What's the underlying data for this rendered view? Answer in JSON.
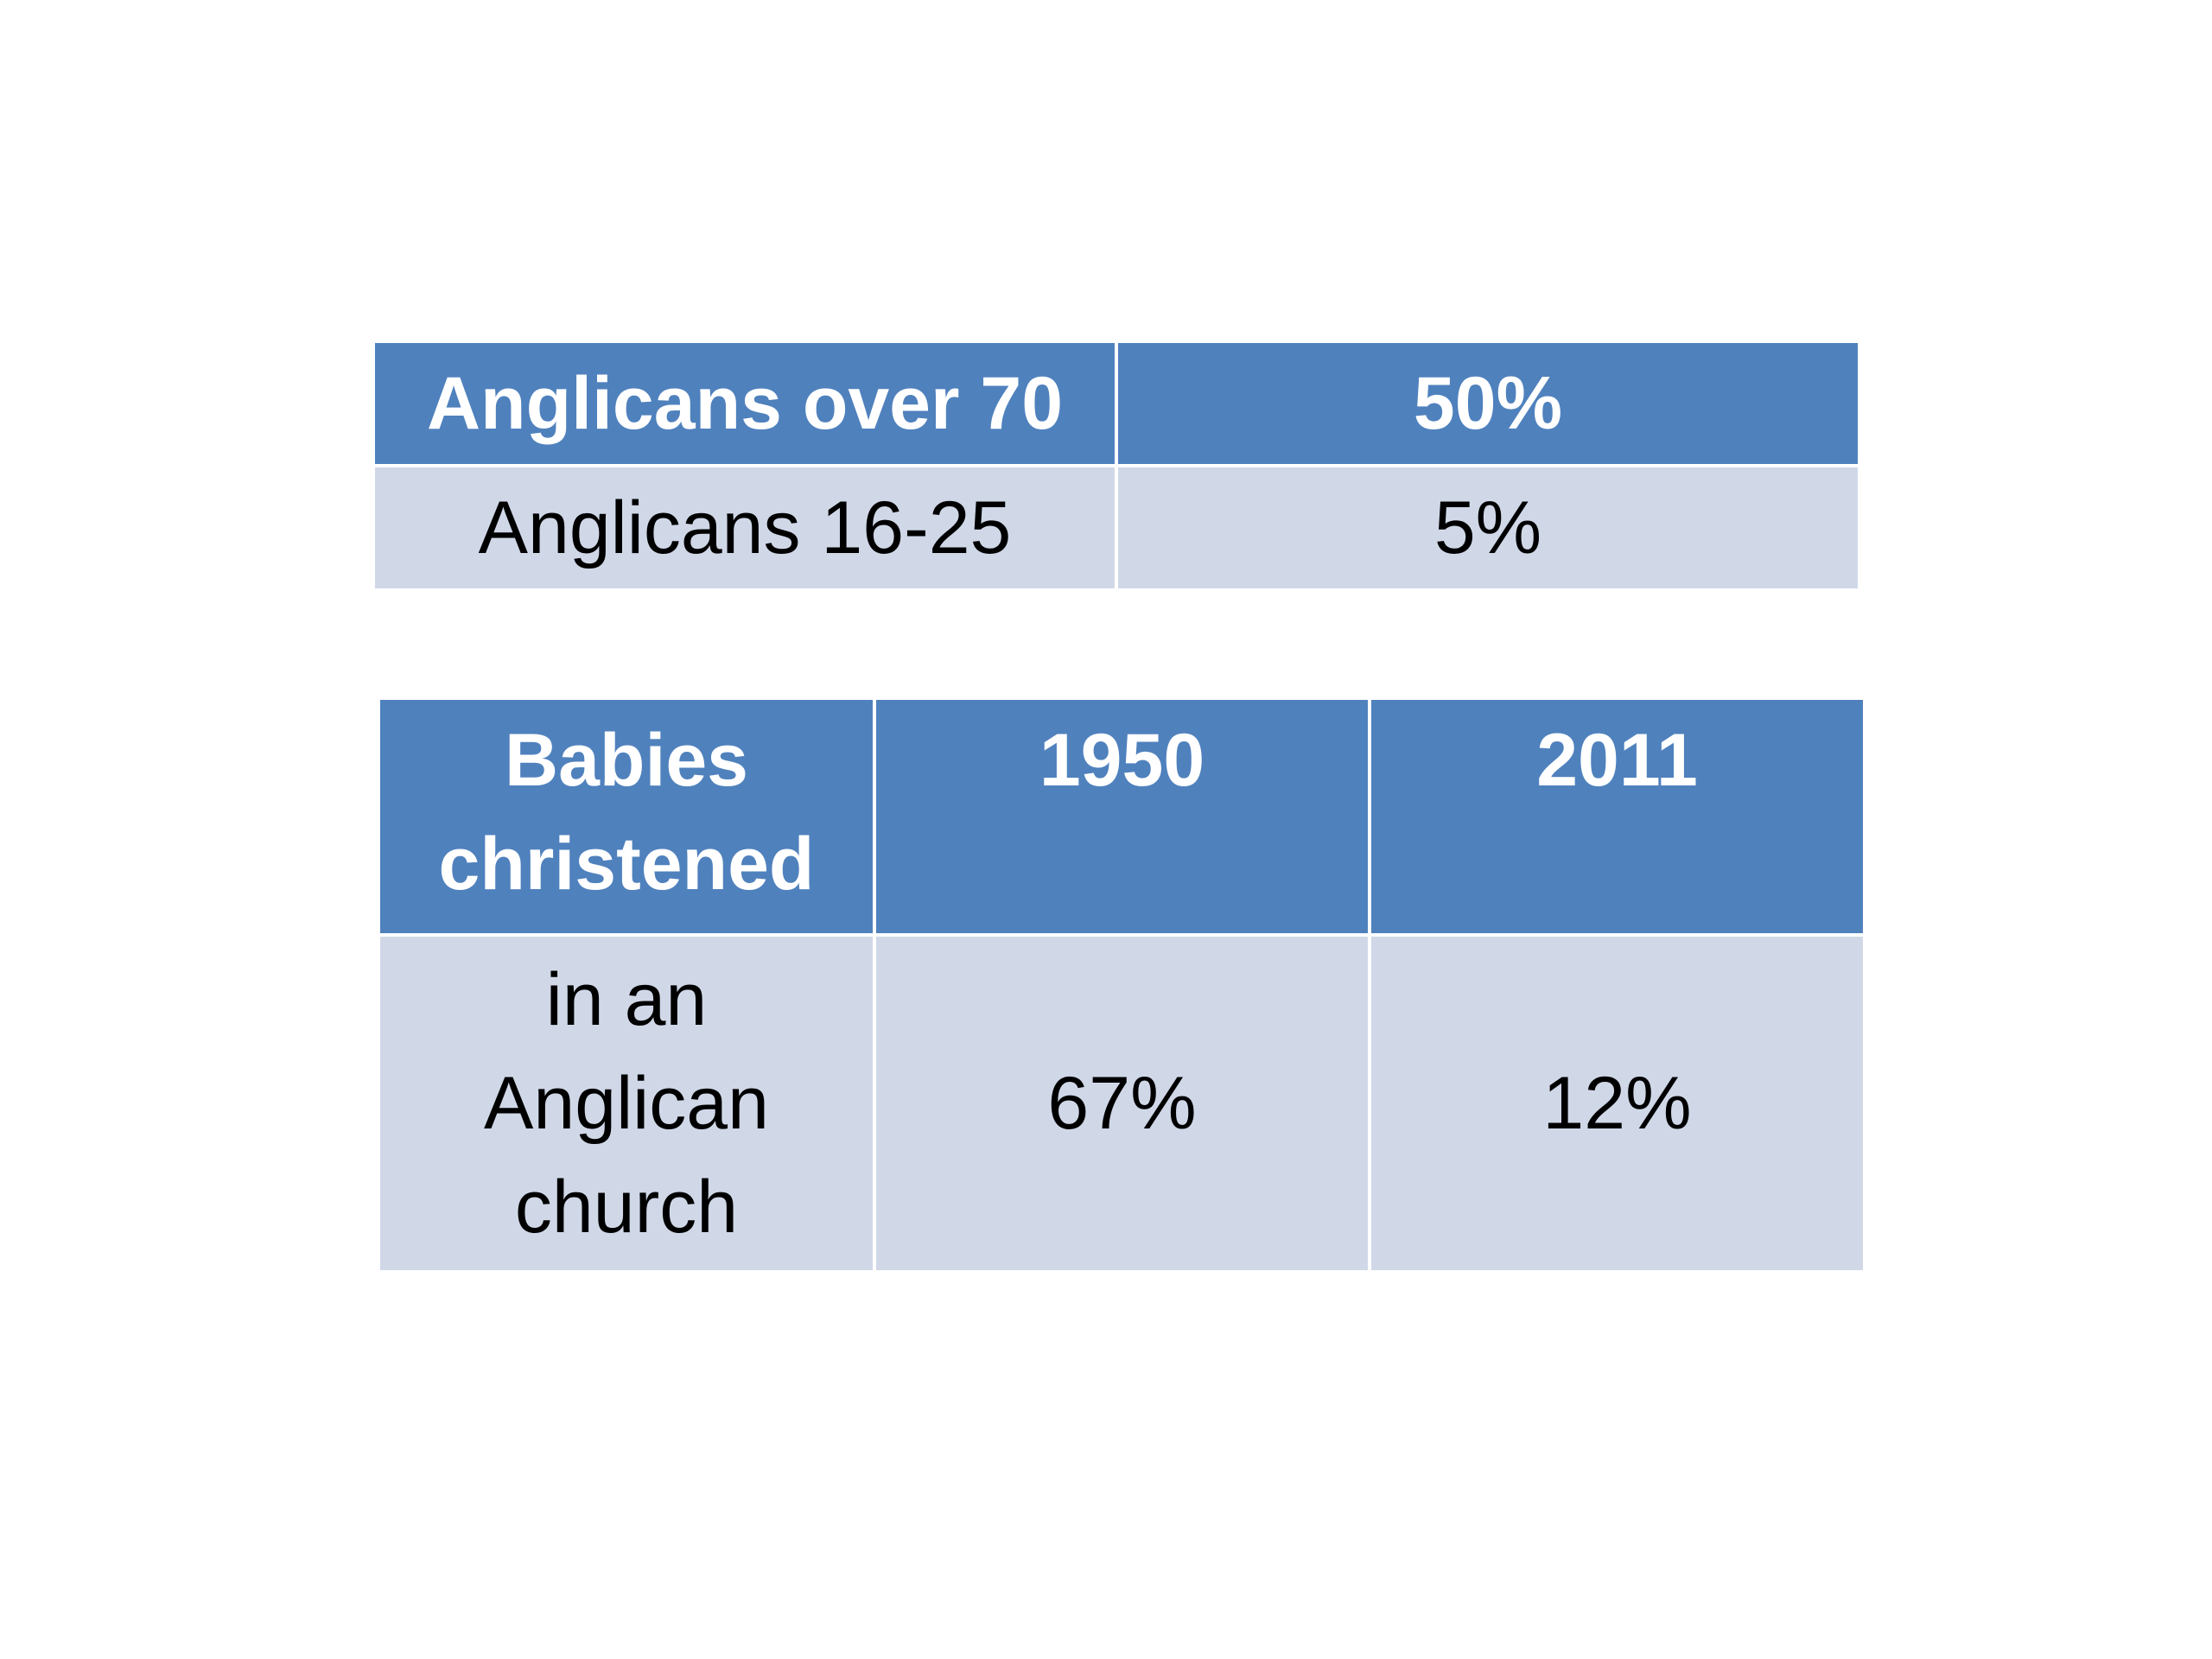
{
  "table_age": {
    "header": [
      "Anglicans over 70",
      "50%"
    ],
    "row": [
      "Anglicans 16-25",
      "5%"
    ]
  },
  "table_christened": {
    "header": [
      "Babies\nchristened",
      "1950",
      "2011"
    ],
    "row": [
      "in an\nAnglican\nchurch",
      "67%",
      "12%"
    ]
  },
  "colors": {
    "header_bg": "#4f81bd",
    "body_bg": "#d0d8e8"
  }
}
